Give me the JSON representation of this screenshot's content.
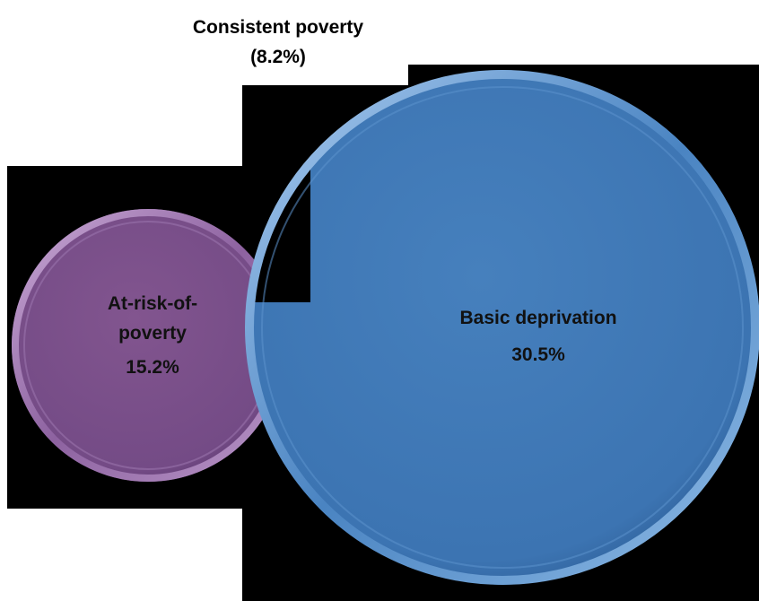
{
  "diagram": {
    "type": "venn",
    "overlap": {
      "label_line1": "Consistent poverty",
      "label_line2": "(8.2%)"
    },
    "circles": [
      {
        "name": "At-risk-of-poverty",
        "label_line1": "At-risk-of-",
        "label_line2": "poverty",
        "value": "15.2%",
        "color": "#7b4f8d"
      },
      {
        "name": "Basic deprivation",
        "label_line1": "Basic deprivation",
        "value": "30.5%",
        "color": "#3f77b5"
      }
    ],
    "background_color": "#000000"
  }
}
